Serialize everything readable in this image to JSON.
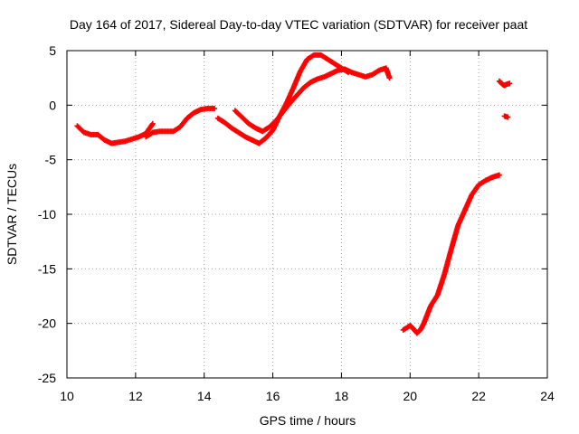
{
  "chart_data": {
    "type": "scatter",
    "title": "Day 164 of 2017, Sidereal Day-to-day VTEC variation (SDTVAR) for receiver paat",
    "xlabel": "GPS time / hours",
    "ylabel": "SDTVAR / TECUs",
    "xlim": [
      10,
      24
    ],
    "ylim": [
      -25,
      5
    ],
    "xticks": [
      10,
      12,
      14,
      16,
      18,
      20,
      22,
      24
    ],
    "yticks": [
      -25,
      -20,
      -15,
      -10,
      -5,
      0,
      5
    ],
    "grid": true,
    "marker": "plus",
    "color": "#ff0000",
    "series": [
      {
        "x": [
          10.3,
          10.5,
          10.7,
          10.9,
          11.1,
          11.3,
          11.5,
          11.7,
          11.9,
          12.1,
          12.3,
          12.5
        ],
        "y": [
          -1.9,
          -2.5,
          -2.7,
          -2.7,
          -3.2,
          -3.5,
          -3.4,
          -3.3,
          -3.1,
          -2.9,
          -2.6,
          -1.7
        ]
      },
      {
        "x": [
          12.3,
          12.5,
          12.7,
          12.9,
          13.1,
          13.3,
          13.5,
          13.7,
          13.9,
          14.1,
          14.3
        ],
        "y": [
          -2.9,
          -2.5,
          -2.4,
          -2.4,
          -2.4,
          -2.0,
          -1.2,
          -0.7,
          -0.4,
          -0.3,
          -0.3
        ]
      },
      {
        "x": [
          14.9,
          15.1,
          15.3,
          15.5,
          15.7,
          15.9,
          16.1,
          16.3,
          16.5,
          16.7,
          16.9,
          17.1,
          17.3,
          17.5,
          17.7,
          17.9,
          18.1,
          18.3,
          18.5,
          18.7,
          18.9,
          19.1,
          19.3,
          19.4
        ],
        "y": [
          -0.5,
          -1.1,
          -1.7,
          -2.1,
          -2.4,
          -2.0,
          -1.4,
          -0.6,
          0.2,
          0.9,
          1.6,
          2.1,
          2.4,
          2.6,
          2.9,
          3.2,
          3.3,
          3.0,
          2.8,
          2.6,
          2.8,
          3.2,
          3.4,
          2.5
        ]
      },
      {
        "x": [
          14.4,
          14.6,
          14.8,
          15.0,
          15.2,
          15.4,
          15.6,
          15.8,
          16.0,
          16.2,
          16.4,
          16.6,
          16.8,
          17.0,
          17.2,
          17.4,
          17.6,
          17.8,
          18.0,
          18.2
        ],
        "y": [
          -1.2,
          -1.6,
          -2.1,
          -2.5,
          -2.9,
          -3.2,
          -3.5,
          -3.0,
          -2.3,
          -1.0,
          0.2,
          1.6,
          3.1,
          4.2,
          4.6,
          4.6,
          4.2,
          3.8,
          3.4,
          3.0
        ]
      },
      {
        "x": [
          19.8,
          19.9,
          20.0,
          20.1,
          20.2,
          20.3,
          20.4,
          20.5,
          20.6,
          20.8,
          21.0,
          21.2,
          21.4,
          21.6,
          21.8,
          22.0,
          22.2,
          22.4,
          22.5,
          22.6
        ],
        "y": [
          -20.6,
          -20.4,
          -20.2,
          -20.5,
          -20.9,
          -20.6,
          -20.0,
          -19.2,
          -18.4,
          -17.4,
          -15.5,
          -13.2,
          -11.0,
          -9.6,
          -8.2,
          -7.3,
          -6.9,
          -6.6,
          -6.5,
          -6.4
        ]
      },
      {
        "x": [
          22.6,
          22.7,
          22.75,
          22.8,
          22.9
        ],
        "y": [
          2.2,
          1.9,
          1.8,
          1.9,
          2.0
        ]
      },
      {
        "x": [
          22.75,
          22.85
        ],
        "y": [
          -1.0,
          -1.1
        ]
      }
    ]
  }
}
